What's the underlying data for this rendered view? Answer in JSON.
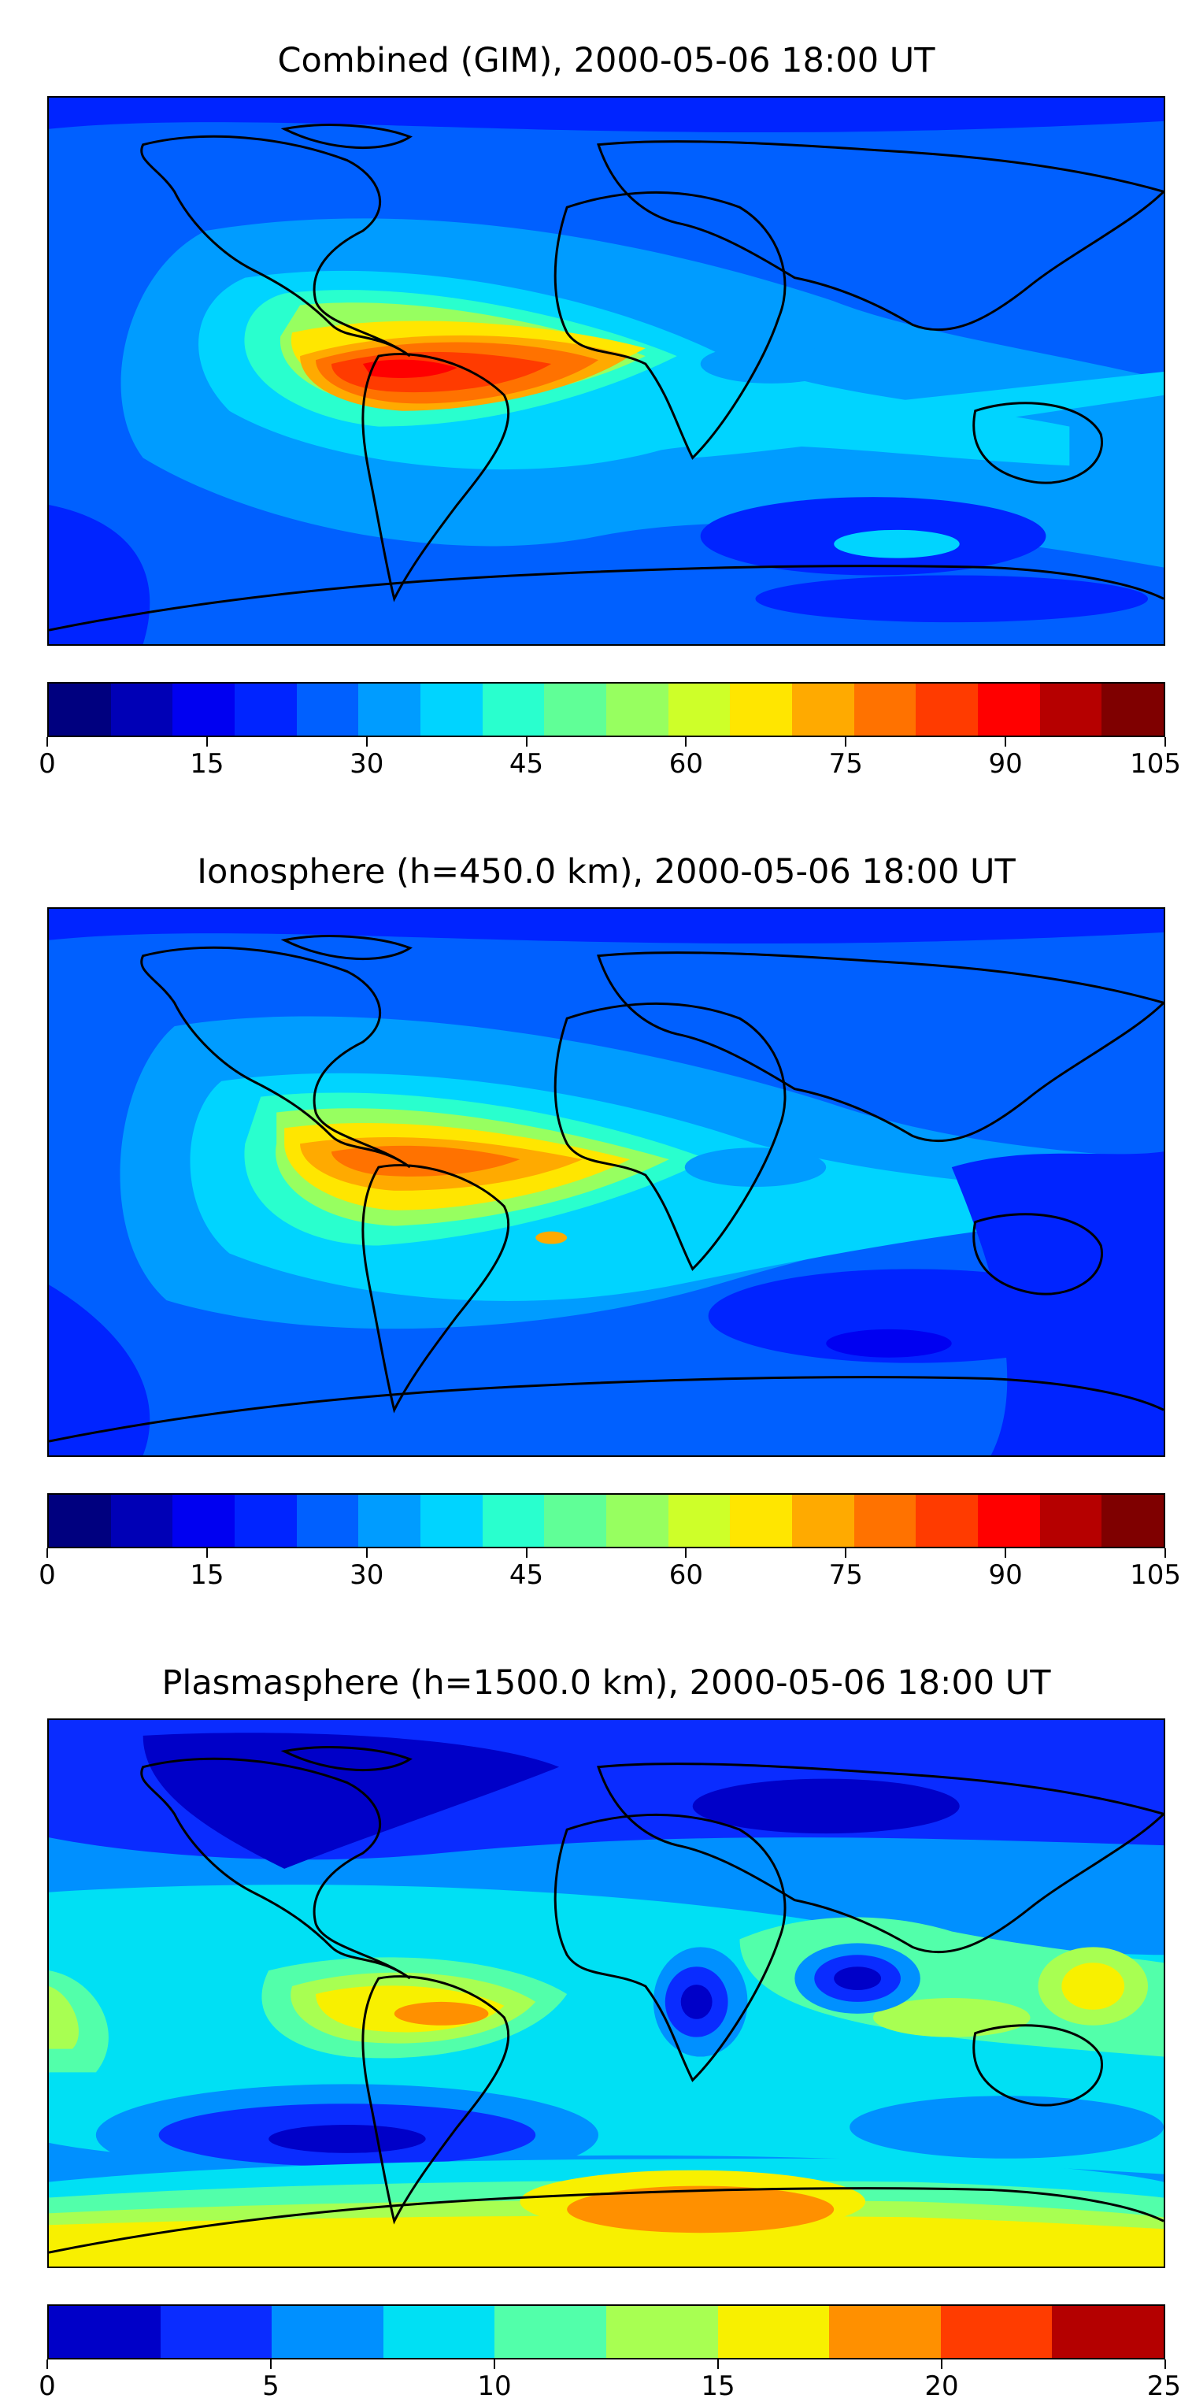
{
  "panels": [
    {
      "title": "Combined (GIM), 2000-05-06 18:00 UT",
      "colorbar": {
        "colors": [
          "#00007f",
          "#0000b6",
          "#0000f1",
          "#0024ff",
          "#0060ff",
          "#009cff",
          "#00d4ff",
          "#29ffce",
          "#60ff97",
          "#97ff60",
          "#ceff29",
          "#ffe600",
          "#ffaa00",
          "#ff7200",
          "#ff3b00",
          "#ff0000",
          "#b60000",
          "#7f0000"
        ],
        "ticks": [
          "0",
          "15",
          "30",
          "45",
          "60",
          "75",
          "90",
          "105"
        ]
      }
    },
    {
      "title": "Ionosphere  (h=450.0 km), 2000-05-06 18:00 UT",
      "colorbar": {
        "colors": [
          "#00007f",
          "#0000b6",
          "#0000f1",
          "#0024ff",
          "#0060ff",
          "#009cff",
          "#00d4ff",
          "#29ffce",
          "#60ff97",
          "#97ff60",
          "#ceff29",
          "#ffe600",
          "#ffaa00",
          "#ff7200",
          "#ff3b00",
          "#ff0000",
          "#b60000",
          "#7f0000"
        ],
        "ticks": [
          "0",
          "15",
          "30",
          "45",
          "60",
          "75",
          "90",
          "105"
        ]
      }
    },
    {
      "title": "Plasmasphere (h=1500.0 km), 2000-05-06 18:00 UT",
      "colorbar": {
        "colors": [
          "#0000c8",
          "#0a2cff",
          "#0090ff",
          "#00e0f4",
          "#52ffaa",
          "#a8ff52",
          "#f8f000",
          "#ff9000",
          "#ff3c00",
          "#b40000"
        ],
        "ticks": [
          "0",
          "5",
          "10",
          "15",
          "20",
          "25"
        ]
      }
    }
  ]
}
